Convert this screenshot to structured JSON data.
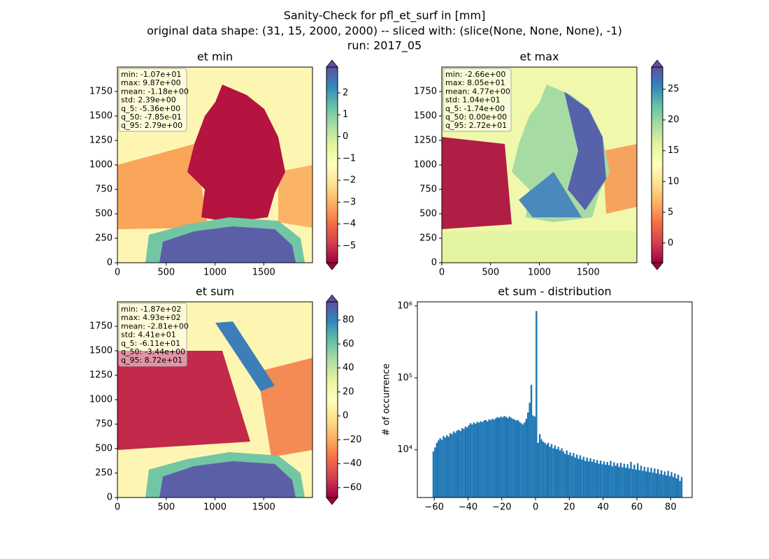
{
  "suptitle": [
    "Sanity-Check for pfl_et_surf in [mm]",
    "original data shape: (31, 15, 2000, 2000) -- sliced with: (slice(None, None, None), -1)",
    "run: 2017_05"
  ],
  "chart_data": [
    {
      "type": "heatmap",
      "title": "et min",
      "xlim": [
        0,
        2000
      ],
      "ylim": [
        0,
        2000
      ],
      "xticks": [
        0,
        500,
        1000,
        1500
      ],
      "yticks": [
        0,
        250,
        500,
        750,
        1000,
        1250,
        1500,
        1750
      ],
      "stats": [
        "min: -1.07e+01",
        "max: 9.87e+00",
        "mean: -1.18e+00",
        "std: 2.39e+00",
        "q_5: -5.36e+00",
        "q_50: -7.85e-01",
        "q_95: 2.79e+00"
      ],
      "colorbar": {
        "lim": [
          -5.77,
          3.18
        ],
        "ticks": [
          {
            "value": -5,
            "label": "−5"
          },
          {
            "value": -4,
            "label": "−4"
          },
          {
            "value": -3,
            "label": "−3"
          },
          {
            "value": -2,
            "label": "−2"
          },
          {
            "value": -1,
            "label": "−1"
          },
          0,
          1,
          2
        ]
      }
    },
    {
      "type": "heatmap",
      "title": "et max",
      "xlim": [
        0,
        2000
      ],
      "ylim": [
        0,
        2000
      ],
      "xticks": [
        0,
        500,
        1000,
        1500
      ],
      "yticks": [
        0,
        250,
        500,
        750,
        1000,
        1250,
        1500,
        1750
      ],
      "stats": [
        "min: -2.66e+00",
        "max: 8.05e+01",
        "mean: 4.77e+00",
        "std: 1.04e+01",
        "q_5: -1.74e+00",
        "q_50: 0.00e+00",
        "q_95: 2.72e+01"
      ],
      "colorbar": {
        "lim": [
          -3.2,
          28.6
        ],
        "ticks": [
          0,
          5,
          10,
          15,
          20,
          25
        ]
      }
    },
    {
      "type": "heatmap",
      "title": "et sum",
      "xlim": [
        0,
        2000
      ],
      "ylim": [
        0,
        2000
      ],
      "xticks": [
        0,
        500,
        1000,
        1500
      ],
      "yticks": [
        0,
        250,
        500,
        750,
        1000,
        1250,
        1500,
        1750
      ],
      "stats": [
        "min: -1.87e+02",
        "max: 4.93e+02",
        "mean: -2.81e+00",
        "std: 4.41e+01",
        "q_5: -6.11e+01",
        "q_50: -3.44e+00",
        "q_95: 8.72e+01"
      ],
      "colorbar": {
        "lim": [
          -68.2,
          95.2
        ],
        "ticks": [
          {
            "value": -60,
            "label": "−60"
          },
          {
            "value": -40,
            "label": "−40"
          },
          {
            "value": -20,
            "label": "−20"
          },
          0,
          20,
          40,
          60,
          80
        ]
      }
    },
    {
      "type": "histogram",
      "title": "et sum - distribution",
      "ylabel": "# of occurrence",
      "color": "#1f77b4",
      "log_scale": true,
      "xlim": [
        -70,
        92.7
      ],
      "ylim": [
        2170,
        1140000
      ],
      "xticks": [
        {
          "value": -60,
          "label": "−60"
        },
        {
          "value": -40,
          "label": "−40"
        },
        {
          "value": -20,
          "label": "−20"
        },
        0,
        20,
        40,
        60,
        80
      ],
      "yticks": [
        {
          "value": 10000,
          "label": "10⁴"
        },
        {
          "value": 100000,
          "label": "10⁵"
        },
        {
          "value": 1000000,
          "label": "10⁶"
        }
      ],
      "bins": [
        -61,
        -60,
        -59,
        -58,
        -57,
        -56,
        -55,
        -54,
        -53,
        -52,
        -51,
        -50,
        -49,
        -48,
        -47,
        -46,
        -45,
        -44,
        -43,
        -42,
        -41,
        -40,
        -39,
        -38,
        -37,
        -36,
        -35,
        -34,
        -33,
        -32,
        -31,
        -30,
        -29,
        -28,
        -27,
        -26,
        -25,
        -24,
        -23,
        -22,
        -21,
        -20,
        -19,
        -18,
        -17,
        -16,
        -15,
        -14,
        -13,
        -12,
        -11,
        -10,
        -9,
        -8,
        -7,
        -6,
        -5,
        -4,
        -3,
        -2,
        -1,
        0,
        1,
        2,
        3,
        4,
        5,
        6,
        7,
        8,
        9,
        10,
        11,
        12,
        13,
        14,
        15,
        16,
        17,
        18,
        19,
        20,
        21,
        22,
        23,
        24,
        25,
        26,
        27,
        28,
        29,
        30,
        31,
        32,
        33,
        34,
        35,
        36,
        37,
        38,
        39,
        40,
        41,
        42,
        43,
        44,
        45,
        46,
        47,
        48,
        49,
        50,
        51,
        52,
        53,
        54,
        55,
        56,
        57,
        58,
        59,
        60,
        61,
        62,
        63,
        64,
        65,
        66,
        67,
        68,
        69,
        70,
        71,
        72,
        73,
        74,
        75,
        76,
        77,
        78,
        79,
        80,
        81,
        82,
        83,
        84,
        85,
        86,
        87
      ],
      "counts": [
        9500,
        10800,
        12500,
        13500,
        14500,
        13800,
        15500,
        14800,
        16000,
        15200,
        17000,
        16500,
        18000,
        17200,
        18500,
        19000,
        18200,
        20000,
        19500,
        21000,
        20500,
        22000,
        23500,
        22500,
        24000,
        23000,
        24500,
        23800,
        25000,
        24200,
        25500,
        26000,
        24800,
        26500,
        25800,
        27000,
        26200,
        27500,
        28500,
        27800,
        29000,
        28200,
        29500,
        28800,
        27500,
        29000,
        28000,
        27000,
        26500,
        25500,
        26000,
        24500,
        23500,
        22500,
        24000,
        27000,
        33000,
        45000,
        80000,
        30000,
        29000,
        850000,
        12500,
        16500,
        14000,
        13000,
        12500,
        11800,
        12500,
        11000,
        12000,
        10500,
        11500,
        10200,
        11000,
        9800,
        10500,
        9500,
        8800,
        9800,
        8500,
        9200,
        8200,
        9000,
        7800,
        8600,
        7500,
        8400,
        7300,
        8000,
        7000,
        7800,
        6900,
        7600,
        6800,
        7400,
        6600,
        7200,
        6400,
        7100,
        6300,
        6900,
        6200,
        6800,
        6100,
        7000,
        5900,
        6700,
        6000,
        6500,
        5800,
        6600,
        5700,
        6400,
        5600,
        6300,
        5500,
        6800,
        5400,
        6200,
        5300,
        6500,
        5200,
        6000,
        5100,
        5800,
        5000,
        5700,
        4900,
        5600,
        4800,
        5500,
        4700,
        5400,
        4600,
        5200,
        4500,
        5000,
        4400,
        5100,
        4300,
        4900,
        4200,
        4700,
        4000,
        4500,
        3700,
        4200
      ]
    }
  ]
}
